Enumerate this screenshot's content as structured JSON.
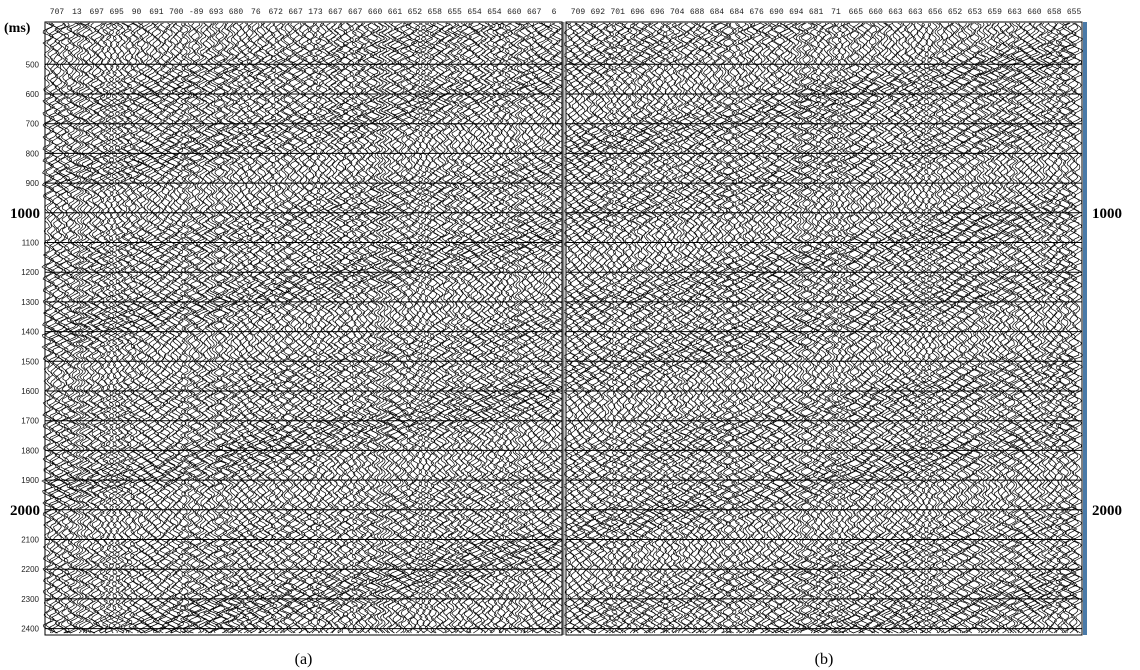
{
  "panels": [
    {
      "trace_labels": [
        "707",
        "13",
        "697",
        "695",
        "90",
        "691",
        "700",
        "-89",
        "693",
        "680",
        "76",
        "672",
        "667",
        "173",
        "667",
        "667",
        "660",
        "661",
        "652",
        "658",
        "655",
        "654",
        "654",
        "660",
        "667",
        "6"
      ],
      "caption": "(a)"
    },
    {
      "trace_labels": [
        "709",
        "692",
        "701",
        "696",
        "696",
        "704",
        "688",
        "684",
        "684",
        "676",
        "690",
        "694",
        "681",
        "71",
        "665",
        "660",
        "663",
        "663",
        "656",
        "652",
        "653",
        "659",
        "663",
        "660",
        "658",
        "655"
      ],
      "caption": "(b)"
    }
  ],
  "left_axis": {
    "unit": "(ms)",
    "labels": [
      "500",
      "600",
      "700",
      "800",
      "900",
      "1000",
      "1100",
      "1200",
      "1300",
      "1400",
      "1500",
      "1600",
      "1700",
      "1800",
      "1900",
      "2000",
      "2100",
      "2200",
      "2300",
      "2400"
    ]
  },
  "right_axis": {
    "labels": [
      "1000",
      "2000"
    ]
  }
}
